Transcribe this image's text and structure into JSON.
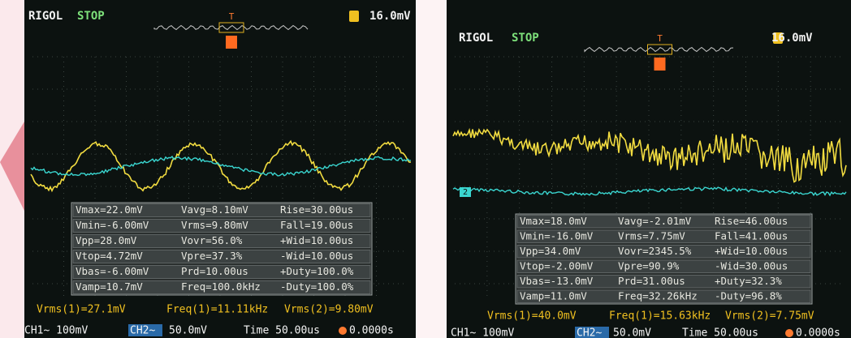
{
  "screens": [
    {
      "brand": "RIGOL",
      "status": "STOP",
      "trigger_marker": "T",
      "trigger_level": "16.0mV",
      "measurements": [
        [
          "Vmax=22.0mV",
          "Vavg=8.10mV",
          "Rise=30.00us"
        ],
        [
          "Vmin=-6.00mV",
          "Vrms=9.80mV",
          "Fall=19.00us"
        ],
        [
          "Vpp=28.0mV",
          "Vovr=56.0%",
          "+Wid=10.00us"
        ],
        [
          "Vtop=4.72mV",
          "Vpre=37.3%",
          "-Wid=10.00us"
        ],
        [
          "Vbas=-6.00mV",
          "Prd=10.00us",
          "+Duty=100.0%"
        ],
        [
          "Vamp=10.7mV",
          "Freq=100.0kHz",
          "-Duty=100.0%"
        ]
      ],
      "readouts": [
        "Vrms(1)=27.1mV",
        "Freq(1)=11.11kHz",
        "Vrms(2)=9.80mV"
      ],
      "footer": [
        "CH1~ 100mV",
        "CH2~",
        "50.0mV",
        "Time 50.00us",
        "0.0000s"
      ]
    },
    {
      "brand": "RIGOL",
      "status": "STOP",
      "trigger_marker": "T",
      "trigger_level": "16.0mV",
      "channel_marker": "2",
      "measurements": [
        [
          "Vmax=18.0mV",
          "Vavg=-2.01mV",
          "Rise=46.00us"
        ],
        [
          "Vmin=-16.0mV",
          "Vrms=7.75mV",
          "Fall=41.00us"
        ],
        [
          "Vpp=34.0mV",
          "Vovr=2345.5%",
          "+Wid=10.00us"
        ],
        [
          "Vtop=-2.00mV",
          "Vpre=90.9%",
          "-Wid=30.00us"
        ],
        [
          "Vbas=-13.0mV",
          "Prd=31.00us",
          "+Duty=32.3%"
        ],
        [
          "Vamp=11.0mV",
          "Freq=32.26kHz",
          "-Duty=96.8%"
        ]
      ],
      "readouts": [
        "Vrms(1)=40.0mV",
        "Freq(1)=15.63kHz",
        "Vrms(2)=7.75mV"
      ],
      "footer": [
        "CH1~ 100mV",
        "CH2~",
        "50.0mV",
        "Time 50.00us",
        "0.0000s"
      ]
    }
  ]
}
